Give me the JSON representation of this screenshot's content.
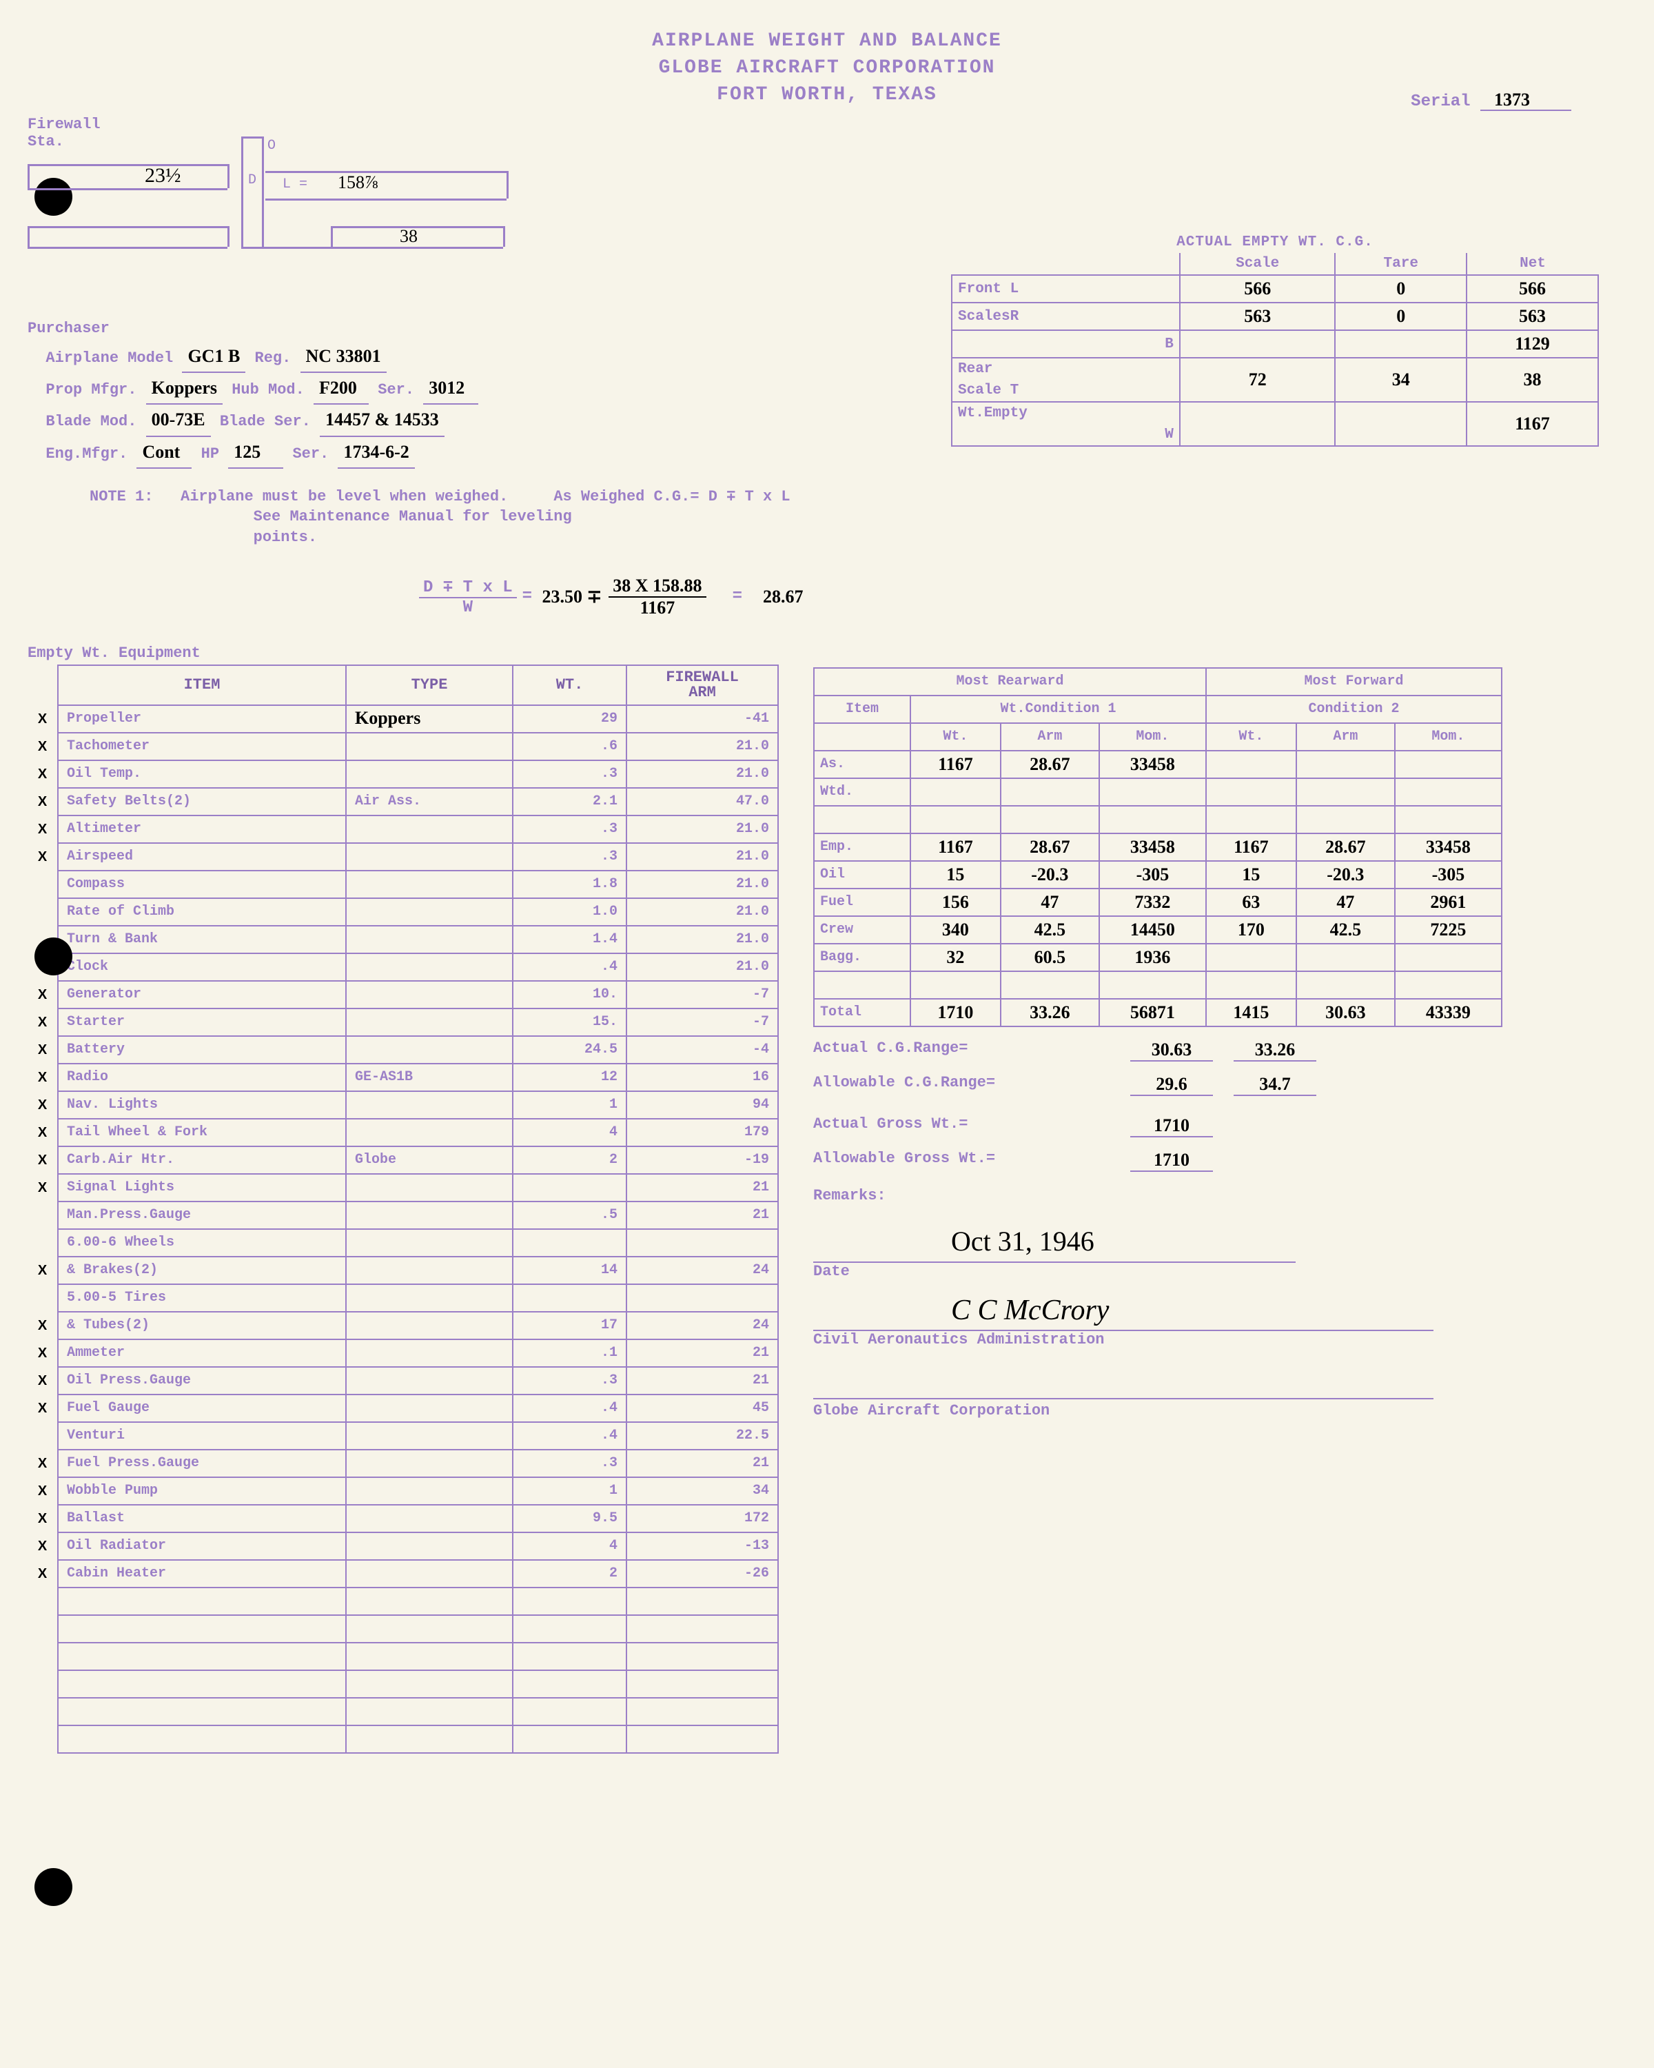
{
  "header": {
    "line1": "AIRPLANE WEIGHT AND BALANCE",
    "line2": "GLOBE AIRCRAFT CORPORATION",
    "line3": "FORT WORTH, TEXAS"
  },
  "serial": {
    "label": "Serial",
    "value": "1373"
  },
  "firewall": {
    "label1": "Firewall",
    "label2": "Sta.",
    "o": "O",
    "d": "D",
    "l_label": "L =",
    "l_val": "158⅞",
    "d_val": "23½",
    "b_val": "38"
  },
  "purchaser": {
    "title": "Purchaser",
    "airplane_model_label": "Airplane Model",
    "airplane_model": "GC1 B",
    "reg_label": "Reg.",
    "reg": "NC 33801",
    "prop_mfgr_label": "Prop Mfgr.",
    "prop_mfgr": "Koppers",
    "hub_mod_label": "Hub Mod.",
    "hub_mod": "F200",
    "ser1_label": "Ser.",
    "ser1": "3012",
    "blade_mod_label": "Blade Mod.",
    "blade_mod": "00-73E",
    "blade_ser_label": "Blade Ser.",
    "blade_ser": "14457 & 14533",
    "eng_mfgr_label": "Eng.Mfgr.",
    "eng_mfgr": "Cont",
    "hp_label": "HP",
    "hp": "125",
    "ser2_label": "Ser.",
    "ser2": "1734-6-2"
  },
  "actual_wt": {
    "title": "ACTUAL EMPTY WT. C.G.",
    "cols": {
      "c1": "Scale",
      "c2": "Tare",
      "c3": "Net"
    },
    "rows": {
      "frontl": {
        "lbl": "Front L",
        "scale": "566",
        "tare": "0",
        "net": "566"
      },
      "scalesr": {
        "lbl": "ScalesR",
        "scale": "563",
        "tare": "0",
        "net": "563"
      },
      "b": {
        "lbl": "B",
        "scale": "",
        "tare": "",
        "net": "1129"
      },
      "rear": {
        "lbl": "Rear",
        "scale": "",
        "tare": "",
        "net": ""
      },
      "scalet": {
        "lbl": "Scale T",
        "scale": "72",
        "tare": "34",
        "net": "38"
      },
      "wtempty": {
        "lbl": "Wt.Empty",
        "scale": "",
        "tare": "",
        "net": ""
      },
      "w": {
        "lbl": "W",
        "scale": "",
        "tare": "",
        "net": "1167"
      }
    }
  },
  "note": {
    "head": "NOTE 1:",
    "l1": "Airplane must be level when weighed.",
    "l2": "See Maintenance Manual for leveling",
    "l3": "points.",
    "asweighed": "As Weighed C.G.= D ∓ T x L"
  },
  "formula": {
    "lhs": "D ∓ T x L",
    "w": "W",
    "d_val": "23.50 ∓",
    "num": "38 X 158.88",
    "den": "1167",
    "result": "28.67"
  },
  "equip": {
    "title": "Empty Wt. Equipment",
    "headers": {
      "item": "ITEM",
      "type": "TYPE",
      "wt": "WT.",
      "arm": "FIREWALL\nARM"
    },
    "rows": [
      {
        "x": "X",
        "item": "Propeller",
        "type": "Koppers",
        "wt": "29",
        "arm": "-41"
      },
      {
        "x": "X",
        "item": "Tachometer",
        "type": "",
        "wt": ".6",
        "arm": "21.0"
      },
      {
        "x": "X",
        "item": "Oil Temp.",
        "type": "",
        "wt": ".3",
        "arm": "21.0"
      },
      {
        "x": "X",
        "item": "Safety Belts(2)",
        "type": "Air Ass.",
        "wt": "2.1",
        "arm": "47.0"
      },
      {
        "x": "X",
        "item": "Altimeter",
        "type": "",
        "wt": ".3",
        "arm": "21.0"
      },
      {
        "x": "X",
        "item": "Airspeed",
        "type": "",
        "wt": ".3",
        "arm": "21.0"
      },
      {
        "x": "",
        "item": "Compass",
        "type": "",
        "wt": "1.8",
        "arm": "21.0"
      },
      {
        "x": "",
        "item": "Rate of Climb",
        "type": "",
        "wt": "1.0",
        "arm": "21.0"
      },
      {
        "x": "",
        "item": "Turn & Bank",
        "type": "",
        "wt": "1.4",
        "arm": "21.0"
      },
      {
        "x": "",
        "item": "Clock",
        "type": "",
        "wt": ".4",
        "arm": "21.0"
      },
      {
        "x": "X",
        "item": "Generator",
        "type": "",
        "wt": "10.",
        "arm": "-7"
      },
      {
        "x": "X",
        "item": "Starter",
        "type": "",
        "wt": "15.",
        "arm": "-7"
      },
      {
        "x": "X",
        "item": "Battery",
        "type": "",
        "wt": "24.5",
        "arm": "-4"
      },
      {
        "x": "X",
        "item": "Radio",
        "type": "GE-AS1B",
        "wt": "12",
        "arm": "16"
      },
      {
        "x": "X",
        "item": "Nav. Lights",
        "type": "",
        "wt": "1",
        "arm": "94"
      },
      {
        "x": "X",
        "item": "Tail Wheel & Fork",
        "type": "",
        "wt": "4",
        "arm": "179"
      },
      {
        "x": "X",
        "item": "Carb.Air Htr.",
        "type": "Globe",
        "wt": "2",
        "arm": "-19"
      },
      {
        "x": "X",
        "item": "Signal Lights",
        "type": "",
        "wt": "",
        "arm": "21"
      },
      {
        "x": "",
        "item": "Man.Press.Gauge",
        "type": "",
        "wt": ".5",
        "arm": "21"
      },
      {
        "x": "",
        "item": "6.00-6 Wheels",
        "type": "",
        "wt": "",
        "arm": ""
      },
      {
        "x": "X",
        "item": "& Brakes(2)",
        "type": "",
        "wt": "14",
        "arm": "24"
      },
      {
        "x": "",
        "item": "5.00-5 Tires",
        "type": "",
        "wt": "",
        "arm": ""
      },
      {
        "x": "X",
        "item": "& Tubes(2)",
        "type": "",
        "wt": "17",
        "arm": "24"
      },
      {
        "x": "X",
        "item": "Ammeter",
        "type": "",
        "wt": ".1",
        "arm": "21"
      },
      {
        "x": "X",
        "item": "Oil Press.Gauge",
        "type": "",
        "wt": ".3",
        "arm": "21"
      },
      {
        "x": "X",
        "item": "Fuel Gauge",
        "type": "",
        "wt": ".4",
        "arm": "45"
      },
      {
        "x": "",
        "item": "Venturi",
        "type": "",
        "wt": ".4",
        "arm": "22.5"
      },
      {
        "x": "X",
        "item": "Fuel Press.Gauge",
        "type": "",
        "wt": ".3",
        "arm": "21"
      },
      {
        "x": "X",
        "item": "Wobble Pump",
        "type": "",
        "wt": "1",
        "arm": "34"
      },
      {
        "x": "X",
        "item": "Ballast",
        "type": "",
        "wt": "9.5",
        "arm": "172"
      },
      {
        "x": "X",
        "item": "Oil Radiator",
        "type": "",
        "wt": "4",
        "arm": "-13"
      },
      {
        "x": "X",
        "item": "Cabin Heater",
        "type": "",
        "wt": "2",
        "arm": "-26"
      },
      {
        "x": "",
        "item": "",
        "type": "",
        "wt": "",
        "arm": ""
      },
      {
        "x": "",
        "item": "",
        "type": "",
        "wt": "",
        "arm": ""
      },
      {
        "x": "",
        "item": "",
        "type": "",
        "wt": "",
        "arm": ""
      },
      {
        "x": "",
        "item": "",
        "type": "",
        "wt": "",
        "arm": ""
      },
      {
        "x": "",
        "item": "",
        "type": "",
        "wt": "",
        "arm": ""
      },
      {
        "x": "",
        "item": "",
        "type": "",
        "wt": "",
        "arm": ""
      }
    ]
  },
  "cg": {
    "h_mostrear": "Most Rearward",
    "h_mostfwd": "Most Forward",
    "h_item": "Item",
    "h_cond1": "Wt.Condition 1",
    "h_cond2": "Condition 2",
    "sub": {
      "wt": "Wt.",
      "arm": "Arm",
      "mom": "Mom."
    },
    "rows": [
      {
        "lbl": "As.",
        "wt1": "1167",
        "arm1": "28.67",
        "mom1": "33458",
        "wt2": "",
        "arm2": "",
        "mom2": ""
      },
      {
        "lbl": "Wtd.",
        "wt1": "",
        "arm1": "",
        "mom1": "",
        "wt2": "",
        "arm2": "",
        "mom2": ""
      },
      {
        "lbl": "",
        "wt1": "",
        "arm1": "",
        "mom1": "",
        "wt2": "",
        "arm2": "",
        "mom2": ""
      },
      {
        "lbl": "Emp.",
        "wt1": "1167",
        "arm1": "28.67",
        "mom1": "33458",
        "wt2": "1167",
        "arm2": "28.67",
        "mom2": "33458"
      },
      {
        "lbl": "Oil",
        "wt1": "15",
        "arm1": "-20.3",
        "mom1": "-305",
        "wt2": "15",
        "arm2": "-20.3",
        "mom2": "-305"
      },
      {
        "lbl": "Fuel",
        "wt1": "156",
        "arm1": "47",
        "mom1": "7332",
        "wt2": "63",
        "arm2": "47",
        "mom2": "2961"
      },
      {
        "lbl": "Crew",
        "wt1": "340",
        "arm1": "42.5",
        "mom1": "14450",
        "wt2": "170",
        "arm2": "42.5",
        "mom2": "7225"
      },
      {
        "lbl": "Bagg.",
        "wt1": "32",
        "arm1": "60.5",
        "mom1": "1936",
        "wt2": "",
        "arm2": "",
        "mom2": ""
      },
      {
        "lbl": "",
        "wt1": "",
        "arm1": "",
        "mom1": "",
        "wt2": "",
        "arm2": "",
        "mom2": ""
      },
      {
        "lbl": "Total",
        "wt1": "1710",
        "arm1": "33.26",
        "mom1": "56871",
        "wt2": "1415",
        "arm2": "30.63",
        "mom2": "43339"
      }
    ]
  },
  "summary": {
    "actual_cg_label": "Actual C.G.Range=",
    "actual_cg_1": "30.63",
    "actual_cg_2": "33.26",
    "allow_cg_label": "Allowable C.G.Range=",
    "allow_cg_1": "29.6",
    "allow_cg_2": "34.7",
    "actual_gross_label": "Actual Gross Wt.=",
    "actual_gross": "1710",
    "allow_gross_label": "Allowable Gross Wt.=",
    "allow_gross": "1710",
    "remarks_label": "Remarks:",
    "date_label": "Date",
    "date": "Oct 31, 1946",
    "signature": "C C McCrory",
    "sig1_label": "Civil Aeronautics Administration",
    "sig2_label": "Globe Aircraft Corporation"
  }
}
